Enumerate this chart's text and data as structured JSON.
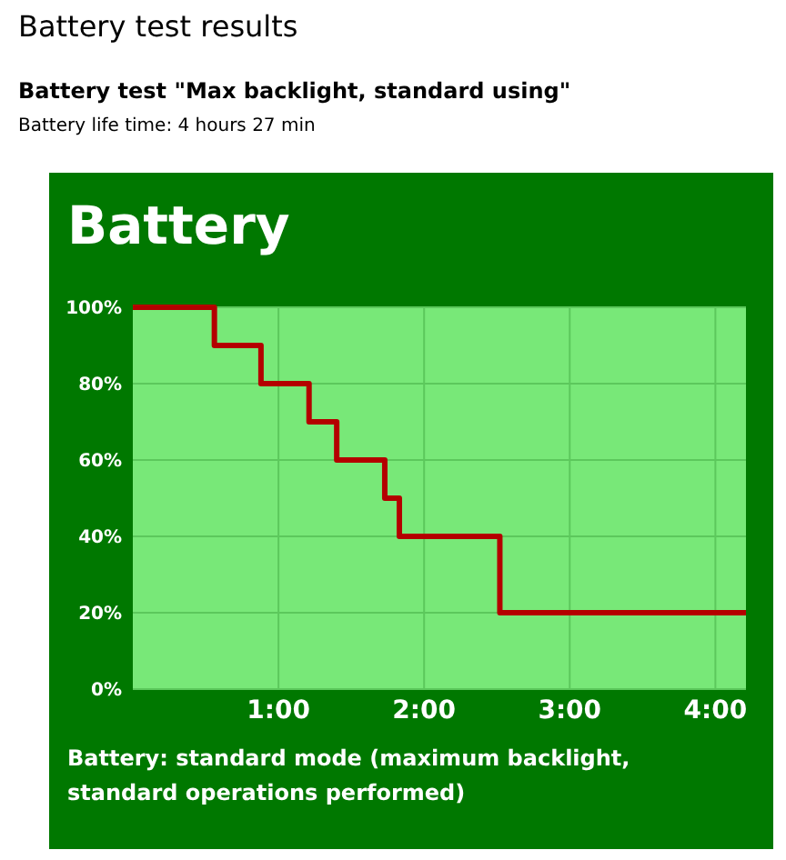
{
  "chart_data": {
    "type": "step",
    "title": "Battery test results",
    "subtitle": "Battery test \"Max backlight, standard using\"",
    "annotations": [
      "Battery life time: 4 hours 27 min",
      "Battery",
      "Battery: standard mode (maximum backlight, standard operations performed)"
    ],
    "x": [
      0,
      0.56,
      0.88,
      1.21,
      1.4,
      1.73,
      1.83,
      2.52,
      4.21
    ],
    "series": [
      {
        "color": "#b40000",
        "values": [
          100,
          90,
          80,
          70,
          60,
          50,
          40,
          20,
          20
        ]
      }
    ],
    "xlim": [
      0,
      4.21
    ],
    "xticks": [
      {
        "value": 1,
        "label": "1:00"
      },
      {
        "value": 2,
        "label": "2:00"
      },
      {
        "value": 3,
        "label": "3:00"
      },
      {
        "value": 4,
        "label": "4:00"
      }
    ],
    "ylim": [
      0,
      100
    ],
    "yticks": [
      {
        "value": 0,
        "label": "0%"
      },
      {
        "value": 20,
        "label": "20%"
      },
      {
        "value": 40,
        "label": "40%"
      },
      {
        "value": 60,
        "label": "60%"
      },
      {
        "value": 80,
        "label": "80%"
      },
      {
        "value": 100,
        "label": "100%"
      }
    ],
    "grid": true,
    "marker": "none",
    "line_style": "solid"
  }
}
